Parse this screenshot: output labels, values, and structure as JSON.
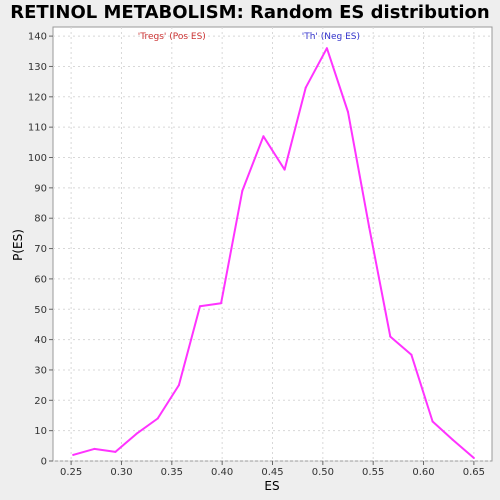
{
  "chart_data": {
    "type": "line",
    "title": "RETINOL METABOLISM: Random ES distribution",
    "xlabel": "ES",
    "ylabel": "P(ES)",
    "xlim": [
      0.232,
      0.668
    ],
    "ylim": [
      0,
      143
    ],
    "x_ticks": [
      "0.25",
      "0.30",
      "0.35",
      "0.40",
      "0.45",
      "0.50",
      "0.55",
      "0.60",
      "0.65"
    ],
    "y_ticks": [
      "0",
      "10",
      "20",
      "30",
      "40",
      "50",
      "60",
      "70",
      "80",
      "90",
      "100",
      "110",
      "120",
      "130",
      "140"
    ],
    "grid": true,
    "series": [
      {
        "color": "#ff33ff",
        "x": [
          0.252,
          0.273,
          0.294,
          0.315,
          0.336,
          0.357,
          0.378,
          0.399,
          0.42,
          0.441,
          0.462,
          0.483,
          0.504,
          0.525,
          0.546,
          0.567,
          0.588,
          0.609,
          0.629,
          0.65
        ],
        "y": [
          2,
          4,
          3,
          9,
          14,
          25,
          51,
          52,
          89,
          107,
          96,
          123,
          136,
          115,
          77,
          41,
          35,
          13,
          7,
          1
        ]
      }
    ],
    "annotations": [
      {
        "text": "'Tregs' (Pos ES)",
        "color": "#cc3333",
        "x": 0.35
      },
      {
        "text": "'Th' (Neg ES)",
        "color": "#3333cc",
        "x": 0.508
      }
    ]
  }
}
